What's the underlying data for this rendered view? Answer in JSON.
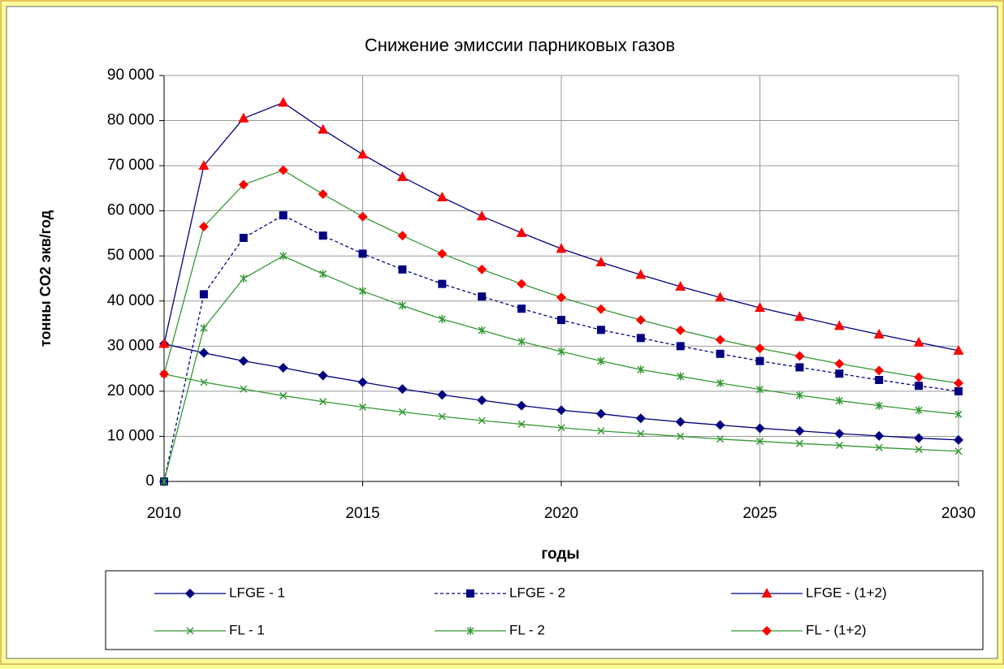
{
  "chart_data": {
    "type": "line",
    "title": "Снижение эмиссии парниковых газов",
    "x_label": "годы",
    "y_label": "тонны CO2 экв/год",
    "x": [
      2010,
      2011,
      2012,
      2013,
      2014,
      2015,
      2016,
      2017,
      2018,
      2019,
      2020,
      2021,
      2022,
      2023,
      2024,
      2025,
      2026,
      2027,
      2028,
      2029,
      2030
    ],
    "xlim": [
      2010,
      2030
    ],
    "xticks": [
      2010,
      2015,
      2020,
      2025,
      2030
    ],
    "ylim": [
      0,
      90000
    ],
    "yticks": [
      0,
      {
        "value": 10000,
        "label": "10 000"
      },
      {
        "value": 20000,
        "label": "20 000"
      },
      {
        "value": 30000,
        "label": "30 000"
      },
      {
        "value": 40000,
        "label": "40 000"
      },
      {
        "value": 50000,
        "label": "50 000"
      },
      {
        "value": 60000,
        "label": "60 000"
      },
      {
        "value": 70000,
        "label": "70 000"
      },
      {
        "value": 80000,
        "label": "80 000"
      },
      {
        "value": 90000,
        "label": "90 000"
      }
    ],
    "grid": true,
    "legend": "bottom",
    "series": [
      {
        "name": "LFGE - 1",
        "color": "#000080",
        "marker": "diamond",
        "marker_color": "#000080",
        "dash": false,
        "values": [
          30500,
          28500,
          26700,
          25200,
          23500,
          22000,
          20500,
          19200,
          18000,
          16800,
          15800,
          15000,
          14000,
          13200,
          12500,
          11800,
          11200,
          10600,
          10100,
          9600,
          9200
        ]
      },
      {
        "name": "LFGE - 2",
        "color": "#000080",
        "marker": "square",
        "marker_color": "#000080",
        "dash": true,
        "values": [
          0,
          41500,
          54000,
          59000,
          54500,
          50500,
          47000,
          43800,
          41000,
          38300,
          35800,
          33600,
          31800,
          30000,
          28300,
          26700,
          25300,
          23900,
          22500,
          21200,
          20000
        ]
      },
      {
        "name": "LFGE - (1+2)",
        "color": "#000080",
        "marker": "triangle",
        "marker_color": "#ff0000",
        "dash": false,
        "values": [
          30500,
          70000,
          80500,
          84000,
          78000,
          72500,
          67500,
          63000,
          58800,
          55100,
          51600,
          48600,
          45800,
          43200,
          40800,
          38500,
          36500,
          34500,
          32600,
          30800,
          29000
        ]
      },
      {
        "name": "FL - 1",
        "color": "#339933",
        "marker": "x",
        "marker_color": "#339933",
        "dash": false,
        "values": [
          23800,
          22000,
          20500,
          19000,
          17700,
          16500,
          15400,
          14400,
          13500,
          12700,
          11900,
          11200,
          10600,
          10000,
          9400,
          8900,
          8400,
          8000,
          7500,
          7100,
          6700
        ]
      },
      {
        "name": "FL - 2",
        "color": "#339933",
        "marker": "star",
        "marker_color": "#339933",
        "dash": false,
        "values": [
          0,
          34000,
          45000,
          50000,
          46000,
          42200,
          39000,
          36000,
          33500,
          31000,
          28800,
          26700,
          24800,
          23300,
          21800,
          20400,
          19100,
          17900,
          16800,
          15800,
          14900
        ]
      },
      {
        "name": "FL - (1+2)",
        "color": "#339933",
        "marker": "diamond",
        "marker_color": "#ff0000",
        "dash": false,
        "values": [
          23800,
          56500,
          65800,
          69000,
          63700,
          58700,
          54500,
          50500,
          47000,
          43800,
          40800,
          38200,
          35800,
          33500,
          31400,
          29500,
          27800,
          26100,
          24600,
          23100,
          21800
        ]
      }
    ]
  }
}
